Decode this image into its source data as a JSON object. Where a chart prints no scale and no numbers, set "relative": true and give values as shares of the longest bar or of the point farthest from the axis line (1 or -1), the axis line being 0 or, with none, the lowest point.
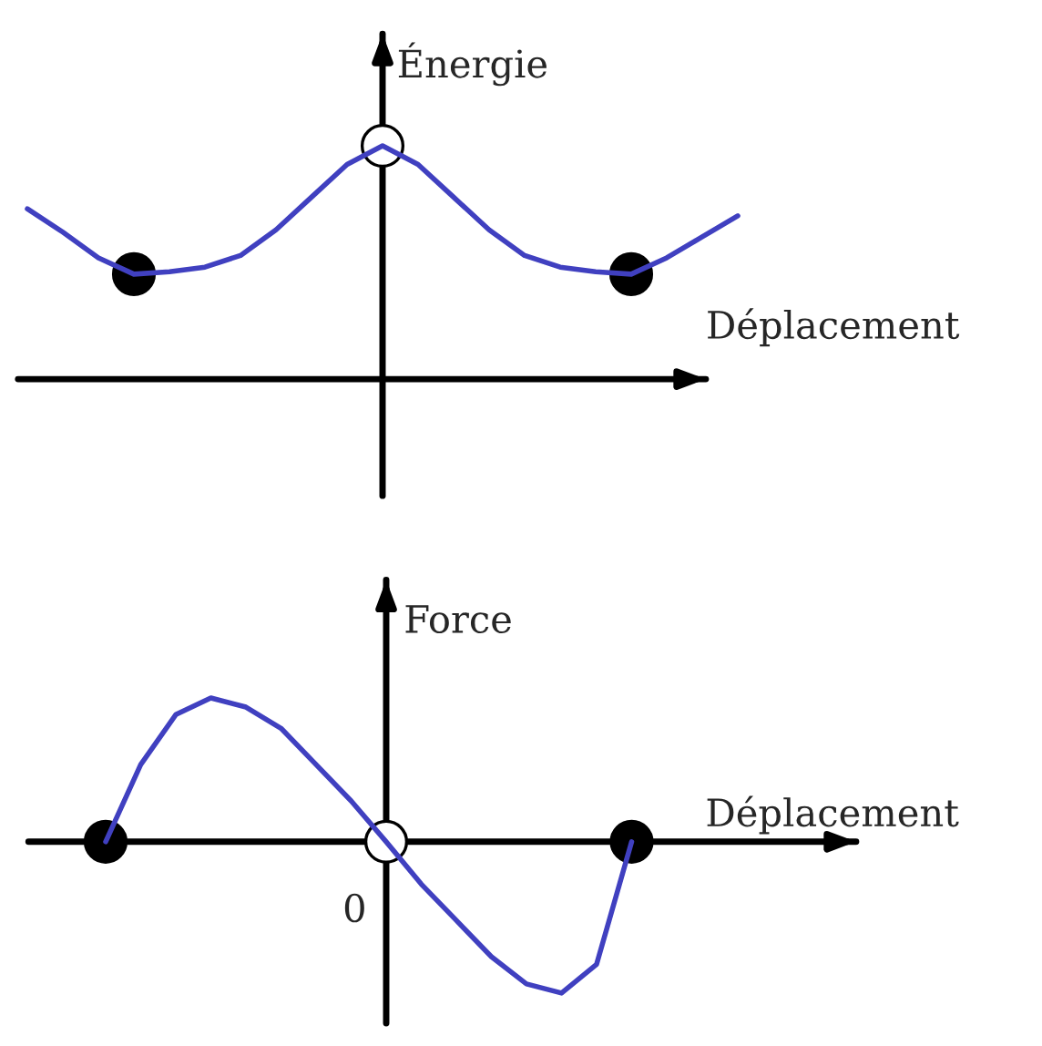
{
  "chart_data": [
    {
      "type": "line",
      "relative": true,
      "ylabel": "Énergie",
      "xlabel": "Déplacement",
      "categories": [
        null,
        null,
        null,
        null,
        null,
        null,
        null,
        null,
        null,
        null,
        null,
        null,
        null,
        null,
        null,
        null,
        null,
        null,
        null,
        null,
        null
      ],
      "series": [
        {
          "color": "#4040c0",
          "values": [
            0.73,
            0.63,
            0.52,
            0.45,
            0.46,
            0.48,
            0.53,
            0.64,
            0.78,
            0.92,
            1,
            0.92,
            0.78,
            0.64,
            0.53,
            0.48,
            0.46,
            0.45,
            0.52,
            0.61,
            0.7
          ]
        }
      ]
    },
    {
      "type": "line",
      "relative": true,
      "ylabel": "Force",
      "xlabel": "Déplacement",
      "annotations": [
        "0"
      ],
      "categories": [
        null,
        null,
        null,
        null,
        null,
        null,
        null,
        null,
        null,
        null,
        null,
        null,
        null,
        null,
        null,
        null
      ],
      "series": [
        {
          "color": "#4040c0",
          "values": [
            0,
            0.51,
            0.84,
            0.95,
            0.89,
            0.75,
            0.51,
            0.27,
            0,
            -0.28,
            -0.52,
            -0.76,
            -0.94,
            -1,
            -0.81,
            0
          ]
        }
      ]
    }
  ]
}
